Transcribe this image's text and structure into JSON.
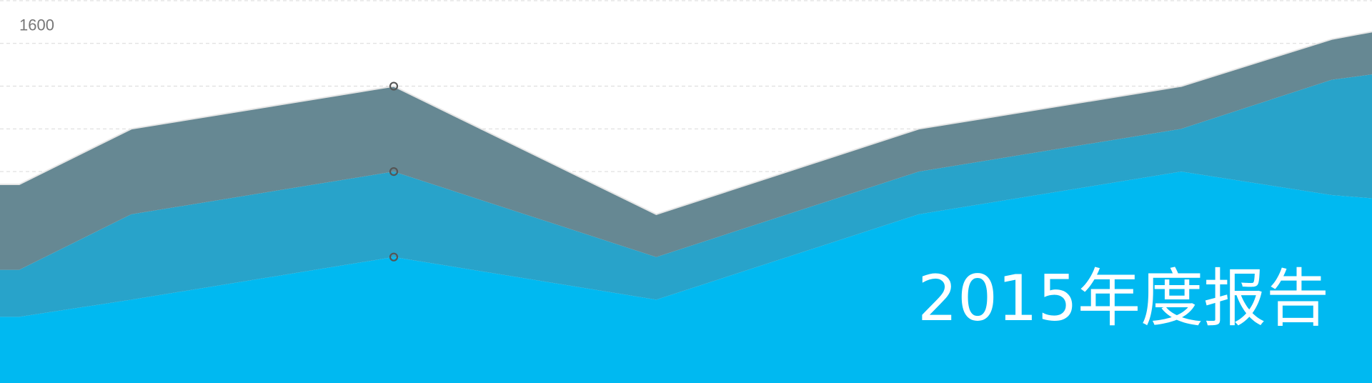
{
  "chart_data": {
    "type": "stacked-area",
    "title": "2015年度报告",
    "x": [
      22,
      150,
      450,
      750,
      1050,
      1350,
      1522,
      1568
    ],
    "xlim": [
      0,
      1568
    ],
    "ylim": [
      0,
      1800
    ],
    "yticks": [
      {
        "value": 200,
        "label": null
      },
      {
        "value": 400,
        "label": null
      },
      {
        "value": 600,
        "label": null
      },
      {
        "value": 800,
        "label": null
      },
      {
        "value": 1000,
        "label": null
      },
      {
        "value": 1200,
        "label": null
      },
      {
        "value": 1400,
        "label": null
      },
      1600,
      {
        "value": 1800,
        "label": null
      }
    ],
    "grid": true,
    "highlight_index": 2,
    "series": [
      {
        "color": "#00b9f1",
        "values": [
          320,
          400,
          600,
          400,
          800,
          1000,
          890,
          875
        ]
      },
      {
        "color": "#28a3ca",
        "values": [
          220,
          400,
          400,
          200,
          200,
          200,
          540,
          580
        ]
      },
      {
        "color": "#668893",
        "values": [
          400,
          400,
          400,
          200,
          200,
          200,
          190,
          200
        ]
      }
    ]
  }
}
